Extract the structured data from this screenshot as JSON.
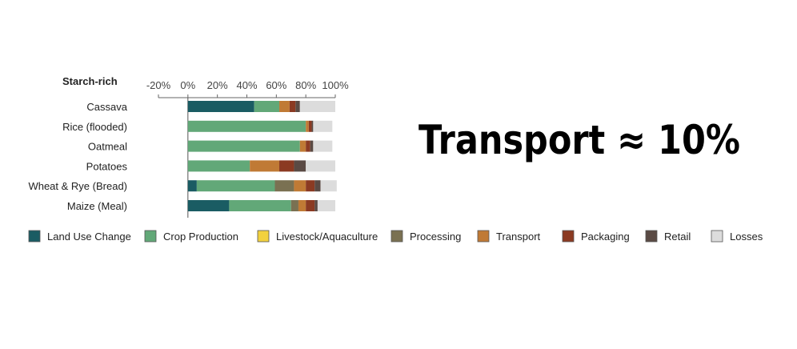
{
  "headline": "Transport ≈ 10%",
  "chart_data": {
    "type": "bar",
    "orientation": "horizontal",
    "stacked": true,
    "title": "Starch-rich",
    "xlim": [
      -20,
      100
    ],
    "xticks": [
      "-20%",
      "0%",
      "20%",
      "40%",
      "60%",
      "80%",
      "100%"
    ],
    "grid": false,
    "legend_position": "bottom",
    "categories": [
      "Cassava",
      "Rice (flooded)",
      "Oatmeal",
      "Potatoes",
      "Wheat & Rye (Bread)",
      "Maize (Meal)"
    ],
    "series": [
      {
        "name": "Land Use Change",
        "color": "#1a5c63",
        "values": [
          45,
          0,
          0,
          0,
          6,
          28
        ]
      },
      {
        "name": "Crop Production",
        "color": "#62a878",
        "values": [
          17,
          80,
          76,
          42,
          53,
          42
        ]
      },
      {
        "name": "Livestock/Aquaculture",
        "color": "#f2d13e",
        "values": [
          0,
          0,
          0,
          0,
          0,
          0
        ]
      },
      {
        "name": "Processing",
        "color": "#7a7152",
        "values": [
          0,
          0,
          0,
          0,
          13,
          5
        ]
      },
      {
        "name": "Transport",
        "color": "#c07a35",
        "values": [
          7,
          2,
          4,
          20,
          8,
          5
        ]
      },
      {
        "name": "Packaging",
        "color": "#8b3a22",
        "values": [
          4,
          2,
          3,
          10,
          6,
          6
        ]
      },
      {
        "name": "Retail",
        "color": "#5a4a44",
        "values": [
          3,
          1,
          2,
          8,
          4,
          2
        ]
      },
      {
        "name": "Losses",
        "color": "#dcdcdc",
        "values": [
          24,
          13,
          13,
          20,
          11,
          12
        ]
      }
    ]
  }
}
